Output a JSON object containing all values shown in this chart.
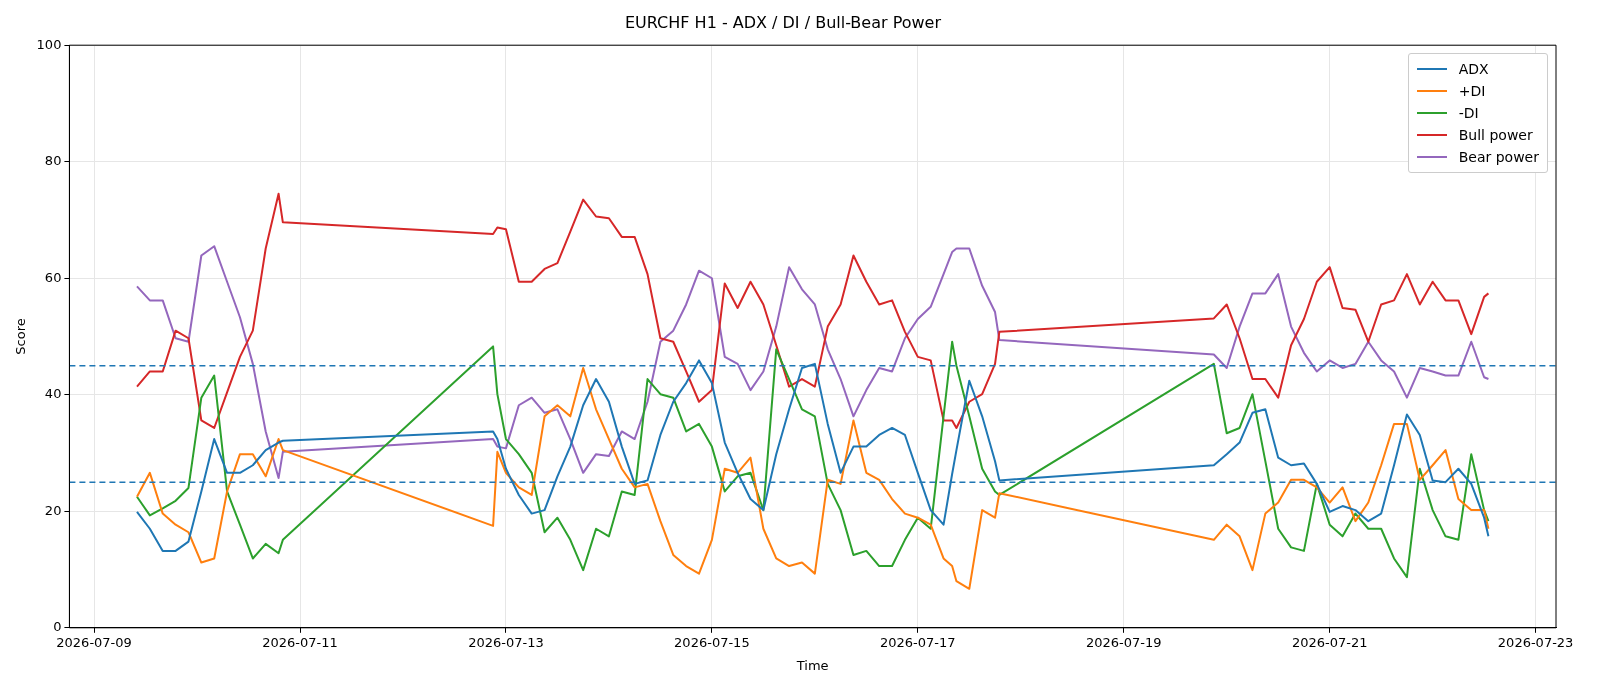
{
  "chart_data": {
    "type": "line",
    "title": "EURCHF H1 - ADX / DI / Bull-Bear Power",
    "xlabel": "Time",
    "ylabel": "Score",
    "x": [
      "2026-07-09T10:00",
      "2026-07-09T13:00",
      "2026-07-09T16:00",
      "2026-07-09T19:00",
      "2026-07-09T22:00",
      "2026-07-10T01:00",
      "2026-07-10T04:00",
      "2026-07-10T07:00",
      "2026-07-10T10:00",
      "2026-07-10T13:00",
      "2026-07-10T16:00",
      "2026-07-10T19:00",
      "2026-07-10T20:00",
      "2026-07-12T21:00",
      "2026-07-12T22:00",
      "2026-07-13T00:00",
      "2026-07-13T03:00",
      "2026-07-13T06:00",
      "2026-07-13T09:00",
      "2026-07-13T12:00",
      "2026-07-13T15:00",
      "2026-07-13T18:00",
      "2026-07-13T21:00",
      "2026-07-14T00:00",
      "2026-07-14T03:00",
      "2026-07-14T06:00",
      "2026-07-14T09:00",
      "2026-07-14T12:00",
      "2026-07-14T15:00",
      "2026-07-14T18:00",
      "2026-07-14T21:00",
      "2026-07-15T00:00",
      "2026-07-15T03:00",
      "2026-07-15T06:00",
      "2026-07-15T09:00",
      "2026-07-15T12:00",
      "2026-07-15T15:00",
      "2026-07-15T18:00",
      "2026-07-15T21:00",
      "2026-07-16T00:00",
      "2026-07-16T03:00",
      "2026-07-16T06:00",
      "2026-07-16T09:00",
      "2026-07-16T12:00",
      "2026-07-16T15:00",
      "2026-07-16T18:00",
      "2026-07-16T21:00",
      "2026-07-17T00:00",
      "2026-07-17T03:00",
      "2026-07-17T06:00",
      "2026-07-17T08:00",
      "2026-07-17T09:00",
      "2026-07-17T12:00",
      "2026-07-17T15:00",
      "2026-07-17T18:00",
      "2026-07-17T19:00",
      "2026-07-19T21:00",
      "2026-07-20T00:00",
      "2026-07-20T03:00",
      "2026-07-20T06:00",
      "2026-07-20T09:00",
      "2026-07-20T12:00",
      "2026-07-20T15:00",
      "2026-07-20T18:00",
      "2026-07-20T21:00",
      "2026-07-21T00:00",
      "2026-07-21T03:00",
      "2026-07-21T06:00",
      "2026-07-21T09:00",
      "2026-07-21T12:00",
      "2026-07-21T15:00",
      "2026-07-21T18:00",
      "2026-07-21T21:00",
      "2026-07-22T00:00",
      "2026-07-22T03:00",
      "2026-07-22T06:00",
      "2026-07-22T09:00",
      "2026-07-22T12:00",
      "2026-07-22T13:00"
    ],
    "series": [
      {
        "name": "ADX",
        "color": "#1f77b4",
        "values": [
          19.9,
          17,
          13.2,
          13.2,
          14.8,
          23.4,
          32.4,
          26.6,
          26.6,
          27.9,
          30.5,
          31.8,
          32.1,
          33.7,
          32.4,
          27.3,
          22.8,
          19.6,
          20.2,
          26,
          31.1,
          38.2,
          42.7,
          38.8,
          31.1,
          24.7,
          25.3,
          33.1,
          38.8,
          42,
          45.9,
          42,
          31.8,
          26.6,
          22.1,
          20.2,
          29.8,
          37.5,
          44.6,
          45.3,
          35,
          26.6,
          31.1,
          31.1,
          33.1,
          34.3,
          33.1,
          26.6,
          20.2,
          17.7,
          26.4,
          30.5,
          42.4,
          36.3,
          28.6,
          25.3,
          27.9,
          29.8,
          31.8,
          36.9,
          37.5,
          29.2,
          27.9,
          28.2,
          24.7,
          19.9,
          20.9,
          20.2,
          18.3,
          19.6,
          27.9,
          36.6,
          33.1,
          25.3,
          25,
          27.3,
          24.7,
          18.9,
          15.7
        ]
      },
      {
        "name": "+DI",
        "color": "#ff7f0e",
        "values": [
          22.5,
          26.6,
          19.6,
          17.7,
          16.4,
          11.2,
          11.9,
          23.4,
          29.8,
          29.8,
          26,
          32.4,
          30.5,
          17.5,
          30.2,
          26.6,
          24.1,
          22.8,
          36.3,
          38.2,
          36.3,
          44.6,
          37.5,
          32.4,
          27.3,
          24.1,
          24.7,
          18.3,
          12.5,
          10.6,
          9.3,
          15.1,
          27.3,
          26.6,
          29.2,
          17,
          11.9,
          10.6,
          11.2,
          9.3,
          25.4,
          24.7,
          35.6,
          26.6,
          25.4,
          22.1,
          19.6,
          18.9,
          17.7,
          11.9,
          10.6,
          8,
          6.7,
          20.2,
          18.9,
          23.1,
          15.1,
          17.7,
          15.7,
          9.9,
          19.6,
          21.5,
          25.4,
          25.4,
          24.1,
          21.5,
          24.1,
          18.3,
          21.5,
          27.9,
          35,
          35,
          25.4,
          27.9,
          30.5,
          22.1,
          20.2,
          20.2,
          17
        ]
      },
      {
        "name": "-DI",
        "color": "#2ca02c",
        "values": [
          22.5,
          19.3,
          20.5,
          21.8,
          24,
          39.5,
          43.3,
          23.4,
          17.7,
          11.9,
          14.4,
          12.8,
          15.1,
          48.3,
          40.1,
          32.4,
          29.8,
          26.6,
          16.4,
          18.9,
          15.1,
          9.9,
          17,
          15.7,
          23.4,
          22.8,
          42.7,
          40.1,
          39.5,
          33.7,
          35,
          31.1,
          23.4,
          26,
          26.6,
          20.2,
          47.8,
          42.7,
          37.5,
          36.3,
          24.7,
          20.2,
          12.5,
          13.2,
          10.6,
          10.6,
          15.1,
          18.9,
          17,
          36.3,
          49.1,
          45,
          36.3,
          27.3,
          23.4,
          22.8,
          45.3,
          33.4,
          34.3,
          40.1,
          28.6,
          17,
          13.8,
          13.2,
          24.7,
          17.7,
          15.7,
          19.6,
          17,
          17,
          11.9,
          8.7,
          27.3,
          20.2,
          15.7,
          15.1,
          29.8,
          20.2,
          18.3
        ]
      },
      {
        "name": "Bull power",
        "color": "#d62728",
        "values": [
          41.4,
          44,
          44,
          51,
          49.7,
          35.6,
          34.3,
          40.4,
          46.5,
          51,
          65.1,
          74.5,
          69.6,
          67.6,
          68.7,
          68.4,
          59.4,
          59.4,
          61.6,
          62.6,
          68,
          73.5,
          70.6,
          70.3,
          67.1,
          67.1,
          60.7,
          49.7,
          49.1,
          44,
          38.8,
          40.8,
          59.1,
          54.9,
          59.4,
          55.5,
          48.5,
          41.4,
          42.7,
          41.4,
          51.7,
          55.5,
          63.9,
          59.4,
          55.5,
          56.2,
          50.8,
          46.5,
          45.9,
          35.6,
          35.6,
          34.3,
          38.8,
          40.1,
          45.3,
          50.8,
          53.1,
          55.5,
          49.7,
          42.7,
          42.7,
          39.5,
          48.5,
          53,
          59.4,
          61.9,
          54.9,
          54.6,
          49.1,
          55.5,
          56.2,
          60.7,
          55.5,
          59.4,
          56.2,
          56.2,
          50.4,
          56.8,
          57.4
        ]
      },
      {
        "name": "Bear power",
        "color": "#9467bd",
        "values": [
          58.6,
          56.2,
          56.2,
          49.7,
          49.1,
          63.9,
          65.5,
          59.4,
          53.3,
          45.3,
          33.7,
          25.7,
          30.2,
          32.4,
          31.1,
          30.8,
          38.2,
          39.5,
          36.9,
          37.5,
          32.4,
          26.6,
          29.8,
          29.5,
          33.7,
          32.4,
          38.8,
          49.1,
          51,
          55.5,
          61.3,
          60,
          46.5,
          45.3,
          40.8,
          44,
          51.7,
          61.9,
          58.1,
          55.5,
          47.8,
          42.7,
          36.3,
          40.8,
          44.6,
          44,
          49.7,
          53,
          55.1,
          60.7,
          64.5,
          65.1,
          65.1,
          58.7,
          54.2,
          49.4,
          46.9,
          44.6,
          51.7,
          57.4,
          57.4,
          60.7,
          51.7,
          47.2,
          44,
          45.9,
          44.6,
          45.3,
          49.1,
          45.9,
          44,
          39.5,
          44.6,
          44,
          43.3,
          43.3,
          49.1,
          43,
          42.7
        ]
      }
    ],
    "xlim": [
      "2026-07-08T18:15",
      "2026-07-23T04:45"
    ],
    "xticks": [
      "2026-07-09",
      "2026-07-11",
      "2026-07-13",
      "2026-07-15",
      "2026-07-17",
      "2026-07-19",
      "2026-07-21",
      "2026-07-23"
    ],
    "ylim": [
      0,
      100
    ],
    "yticks": [
      0,
      20,
      40,
      60,
      80,
      100
    ],
    "ref_lines": [
      {
        "axis": "y",
        "value": 45,
        "color": "#1f77b4",
        "line_style": "dashed"
      },
      {
        "axis": "y",
        "value": 25,
        "color": "#1f77b4",
        "line_style": "dashed"
      }
    ],
    "grid": true,
    "legend": "top right",
    "marker": "none",
    "line_style": "solid"
  }
}
